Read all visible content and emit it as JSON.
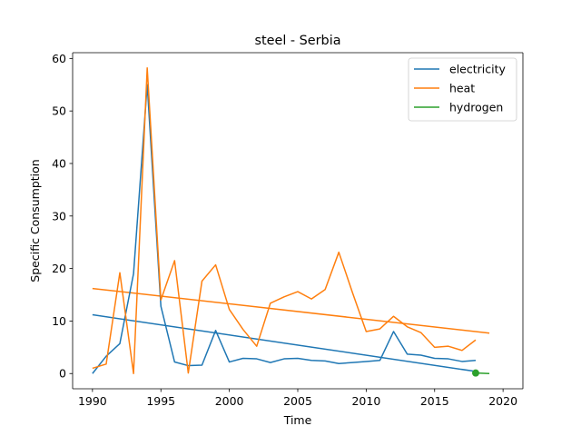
{
  "chart_data": {
    "type": "line",
    "title": "steel - Serbia",
    "xlabel": "Time",
    "ylabel": "Specific Consumption",
    "xlim": [
      1988.55,
      2021.45
    ],
    "ylim": [
      -2.9,
      61.1
    ],
    "xticks": [
      1990,
      1995,
      2000,
      2005,
      2010,
      2015,
      2020
    ],
    "yticks": [
      0,
      10,
      20,
      30,
      40,
      50,
      60
    ],
    "grid": false,
    "legend_position": "top-right",
    "series": [
      {
        "name": "electricity",
        "color": "#1f77b4",
        "x": [
          1990,
          1991,
          1992,
          1993,
          1994,
          1995,
          1996,
          1997,
          1998,
          1999,
          2000,
          2001,
          2002,
          2003,
          2004,
          2005,
          2006,
          2007,
          2008,
          2009,
          2010,
          2011,
          2012,
          2013,
          2014,
          2015,
          2016,
          2017,
          2018
        ],
        "y": [
          0.0,
          3.3,
          5.7,
          19.0,
          55.0,
          12.8,
          2.2,
          1.5,
          1.6,
          8.2,
          2.2,
          2.9,
          2.8,
          2.1,
          2.8,
          2.9,
          2.5,
          2.4,
          1.9,
          2.1,
          2.3,
          2.5,
          8.0,
          3.7,
          3.5,
          2.9,
          2.8,
          2.3,
          2.5
        ]
      },
      {
        "name": "heat",
        "color": "#ff7f0e",
        "x": [
          1990,
          1991,
          1992,
          1993,
          1994,
          1995,
          1996,
          1997,
          1998,
          1999,
          2000,
          2001,
          2002,
          2003,
          2004,
          2005,
          2006,
          2007,
          2008,
          2009,
          2010,
          2011,
          2012,
          2013,
          2014,
          2015,
          2016,
          2017,
          2018
        ],
        "y": [
          1.0,
          1.8,
          19.2,
          0.0,
          58.2,
          14.0,
          21.5,
          0.1,
          17.6,
          20.7,
          12.2,
          8.4,
          5.2,
          13.4,
          14.6,
          15.6,
          14.2,
          16.0,
          23.1,
          15.4,
          8.0,
          8.5,
          10.9,
          8.9,
          7.8,
          5.0,
          5.2,
          4.4,
          6.4
        ]
      },
      {
        "name": "hydrogen",
        "color": "#2ca02c",
        "x": [
          2018
        ],
        "y": [
          0.1
        ]
      }
    ],
    "trend_lines": [
      {
        "series": "electricity",
        "color": "#1f77b4",
        "x": [
          1990,
          2018
        ],
        "y": [
          11.2,
          0.4
        ]
      },
      {
        "series": "heat",
        "color": "#ff7f0e",
        "x": [
          1990,
          2019
        ],
        "y": [
          16.2,
          7.7
        ]
      },
      {
        "series": "hydrogen",
        "color": "#2ca02c",
        "x": [
          2018,
          2019
        ],
        "y": [
          0.1,
          0.0
        ]
      }
    ],
    "markers": [
      {
        "series": "hydrogen",
        "color": "#2ca02c",
        "x": 2018,
        "y": 0.1
      }
    ]
  }
}
